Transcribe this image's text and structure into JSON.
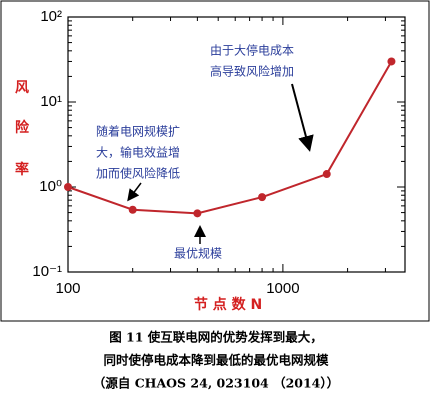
{
  "chart_data": {
    "type": "line",
    "x": [
      100,
      200,
      400,
      800,
      1600,
      3200
    ],
    "series": [
      {
        "color": "#c0262c",
        "values": [
          1.0,
          0.54,
          0.49,
          0.76,
          1.42,
          30
        ]
      }
    ],
    "xlim": [
      100,
      3700
    ],
    "ylim": [
      0.1,
      100
    ],
    "xticks": [
      100,
      1000
    ],
    "yticks": [
      {
        "value": 0.1,
        "label": "10⁻¹"
      },
      {
        "value": 1,
        "label": "10⁰"
      },
      {
        "value": 10,
        "label": "10¹"
      },
      {
        "value": 100,
        "label": "10²"
      }
    ],
    "xscale": "log",
    "yscale": "log",
    "minor_ticks": true,
    "ylabel": [
      "风",
      "险",
      "率"
    ],
    "xlabel": "节 点 数 N",
    "annotations": [
      {
        "lines": [
          "随着电网规模扩",
          "大，输电效益增",
          "加而使风险降低"
        ]
      },
      {
        "lines": [
          "最优规模"
        ]
      },
      {
        "lines": [
          "由于大停电成本",
          "高导致风险增加"
        ]
      }
    ],
    "caption": [
      "图 11 使互联电网的优势发挥到最大，",
      "同时使停电成本降到最低的最优电网规模",
      "（源自 CHAOS 24, 023104 （2014））"
    ]
  }
}
